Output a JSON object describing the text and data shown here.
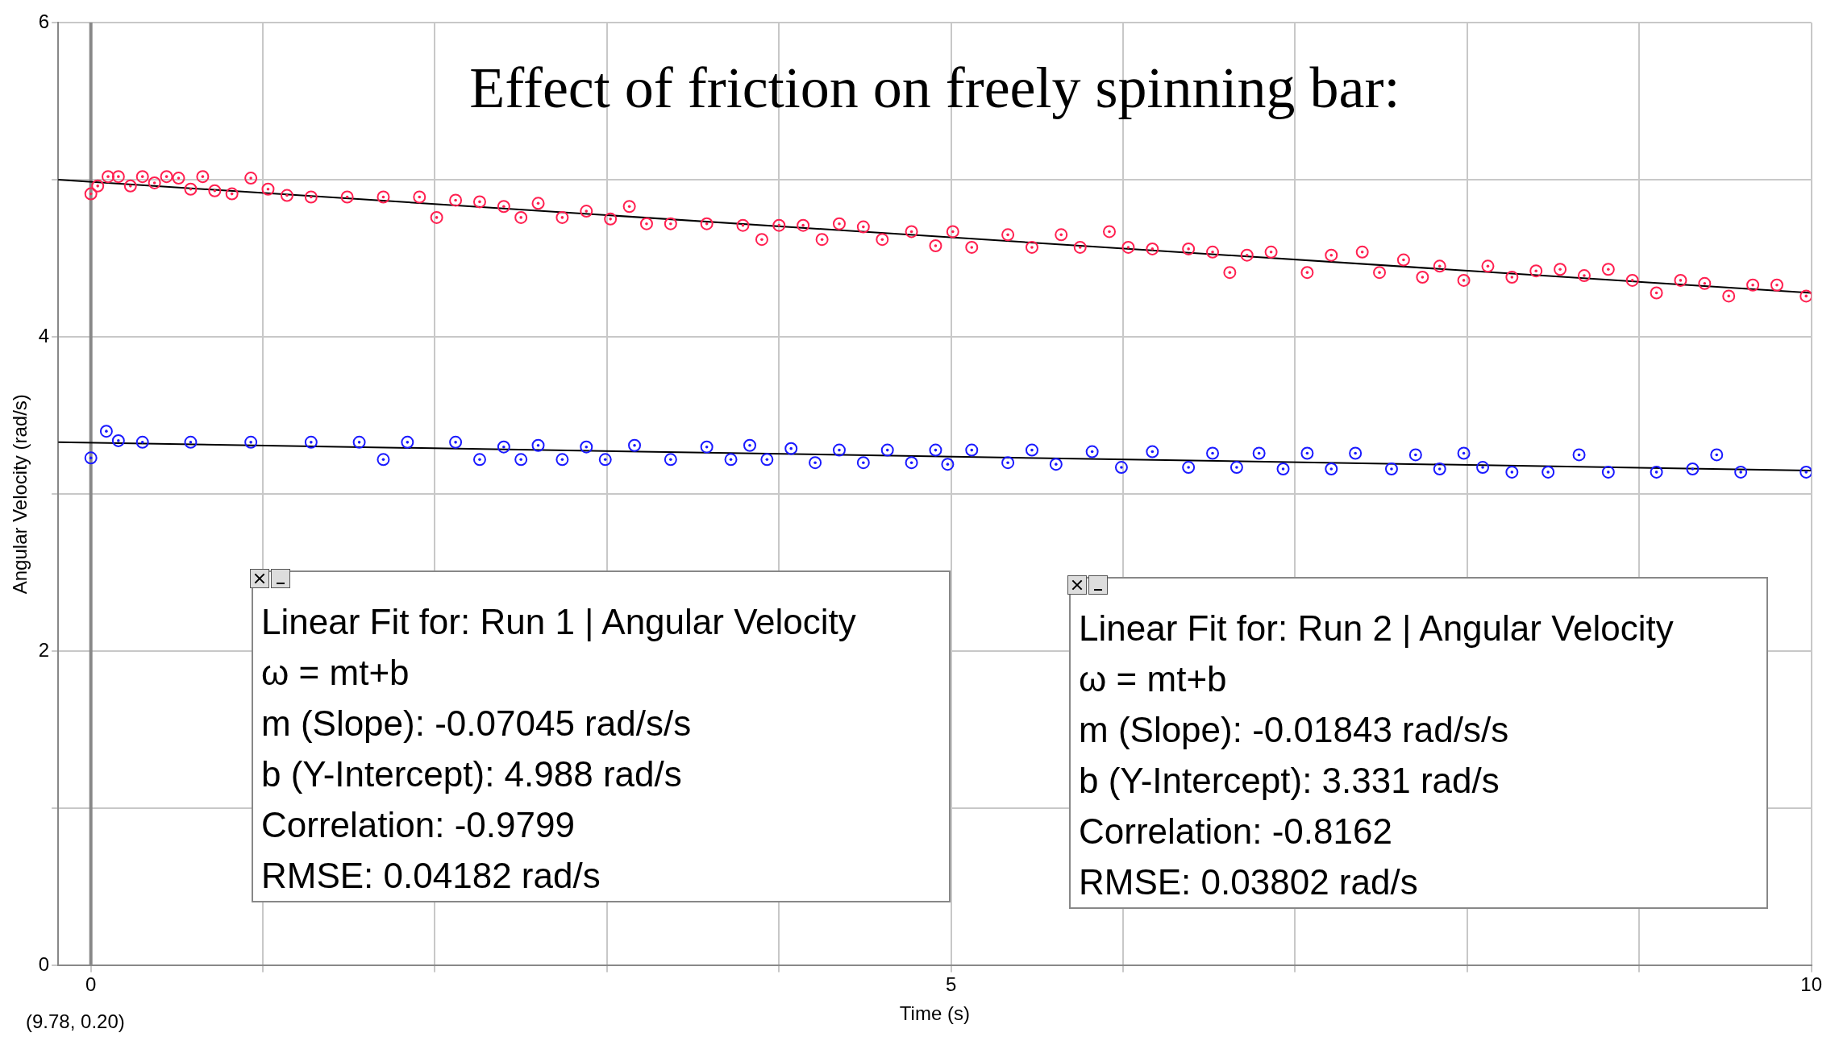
{
  "chart_data": {
    "type": "scatter",
    "title": "Effect of friction on freely spinning bar:",
    "xlabel": "Time (s)",
    "ylabel": "Angular Velocity (rad/s)",
    "xlim": [
      -0.19,
      10
    ],
    "xticks": [
      0,
      {
        "value": 1,
        "label": null
      },
      {
        "value": 2,
        "label": null
      },
      {
        "value": 3,
        "label": null
      },
      {
        "value": 4,
        "label": null
      },
      5,
      {
        "value": 6,
        "label": null
      },
      {
        "value": 7,
        "label": null
      },
      {
        "value": 8,
        "label": null
      },
      {
        "value": 9,
        "label": null
      },
      10
    ],
    "ylim": [
      0,
      6
    ],
    "yticks": [
      0,
      {
        "value": 1,
        "label": null
      },
      2,
      {
        "value": 3,
        "label": null
      },
      4,
      {
        "value": 5,
        "label": null
      },
      6
    ],
    "grid": true,
    "legend": false,
    "marker": "circle",
    "ref_lines": [
      {
        "axis": "x",
        "value": 0,
        "color": "#888888"
      }
    ],
    "series": [
      {
        "color": "#ff2050",
        "x": [
          0,
          0.04,
          0.1,
          0.16,
          0.23,
          0.3,
          0.37,
          0.44,
          0.51,
          0.58,
          0.65,
          0.72,
          0.82,
          0.93,
          1.03,
          1.14,
          1.28,
          1.49,
          1.7,
          1.91,
          2.01,
          2.12,
          2.26,
          2.4,
          2.5,
          2.6,
          2.74,
          2.88,
          3.02,
          3.13,
          3.23,
          3.37,
          3.58,
          3.79,
          3.9,
          4.0,
          4.14,
          4.25,
          4.35,
          4.49,
          4.6,
          4.77,
          4.91,
          5.01,
          5.12,
          5.33,
          5.47,
          5.64,
          5.75,
          5.92,
          6.03,
          6.17,
          6.38,
          6.52,
          6.62,
          6.72,
          6.86,
          7.07,
          7.21,
          7.39,
          7.49,
          7.63,
          7.74,
          7.84,
          7.98,
          8.12,
          8.26,
          8.4,
          8.54,
          8.68,
          8.82,
          8.96,
          9.1,
          9.24,
          9.38,
          9.52,
          9.66,
          9.8,
          9.97
        ],
        "values": [
          4.91,
          4.96,
          5.02,
          5.02,
          4.96,
          5.02,
          4.98,
          5.02,
          5.01,
          4.94,
          5.02,
          4.93,
          4.91,
          5.01,
          4.94,
          4.9,
          4.89,
          4.89,
          4.89,
          4.89,
          4.76,
          4.87,
          4.86,
          4.83,
          4.76,
          4.85,
          4.76,
          4.8,
          4.75,
          4.83,
          4.72,
          4.72,
          4.72,
          4.71,
          4.62,
          4.71,
          4.71,
          4.62,
          4.72,
          4.7,
          4.62,
          4.67,
          4.58,
          4.67,
          4.57,
          4.65,
          4.57,
          4.65,
          4.57,
          4.67,
          4.57,
          4.56,
          4.56,
          4.54,
          4.41,
          4.52,
          4.54,
          4.41,
          4.52,
          4.54,
          4.41,
          4.49,
          4.38,
          4.45,
          4.36,
          4.45,
          4.38,
          4.42,
          4.43,
          4.39,
          4.43,
          4.36,
          4.28,
          4.36,
          4.34,
          4.26,
          4.33,
          4.33,
          4.26
        ]
      },
      {
        "color": "#1a1aff",
        "x": [
          0,
          0.09,
          0.16,
          0.3,
          0.58,
          0.93,
          1.28,
          1.56,
          1.7,
          1.84,
          2.12,
          2.26,
          2.4,
          2.5,
          2.6,
          2.74,
          2.88,
          2.99,
          3.16,
          3.37,
          3.58,
          3.72,
          3.83,
          3.93,
          4.07,
          4.21,
          4.35,
          4.49,
          4.63,
          4.77,
          4.91,
          4.98,
          5.12,
          5.33,
          5.47,
          5.61,
          5.82,
          5.99,
          6.17,
          6.38,
          6.52,
          6.66,
          6.79,
          6.93,
          7.07,
          7.21,
          7.35,
          7.56,
          7.7,
          7.84,
          7.98,
          8.09,
          8.26,
          8.47,
          8.65,
          8.82,
          9.1,
          9.31,
          9.45,
          9.59,
          9.97
        ],
        "values": [
          3.23,
          3.4,
          3.34,
          3.33,
          3.33,
          3.33,
          3.33,
          3.33,
          3.22,
          3.33,
          3.33,
          3.22,
          3.3,
          3.22,
          3.31,
          3.22,
          3.3,
          3.22,
          3.31,
          3.22,
          3.3,
          3.22,
          3.31,
          3.22,
          3.29,
          3.2,
          3.28,
          3.2,
          3.28,
          3.2,
          3.28,
          3.19,
          3.28,
          3.2,
          3.28,
          3.19,
          3.27,
          3.17,
          3.27,
          3.17,
          3.26,
          3.17,
          3.26,
          3.16,
          3.26,
          3.16,
          3.26,
          3.16,
          3.25,
          3.16,
          3.26,
          3.17,
          3.14,
          3.14,
          3.25,
          3.14,
          3.14,
          3.16,
          3.25,
          3.14,
          3.14
        ]
      },
      {
        "type": "line",
        "marker": "none",
        "color": "#000000",
        "x": [
          -0.19,
          10
        ],
        "values": [
          5.0,
          4.28
        ]
      },
      {
        "type": "line",
        "marker": "none",
        "color": "#000000",
        "x": [
          -0.19,
          10
        ],
        "values": [
          3.33,
          3.15
        ]
      }
    ],
    "annotations": [
      "Linear Fit for: Run 1 | Angular Velocity\nω = mt+b\nm (Slope): -0.07045 rad/s/s\nb (Y-Intercept): 4.988 rad/s\nCorrelation: -0.9799\nRMSE: 0.04182 rad/s",
      "Linear Fit for: Run 2 | Angular Velocity\nω = mt+b\nm (Slope): -0.01843 rad/s/s\nb (Y-Intercept): 3.331 rad/s\nCorrelation: -0.8162\nRMSE: 0.03802 rad/s",
      "(9.78, 0.20)"
    ]
  }
}
